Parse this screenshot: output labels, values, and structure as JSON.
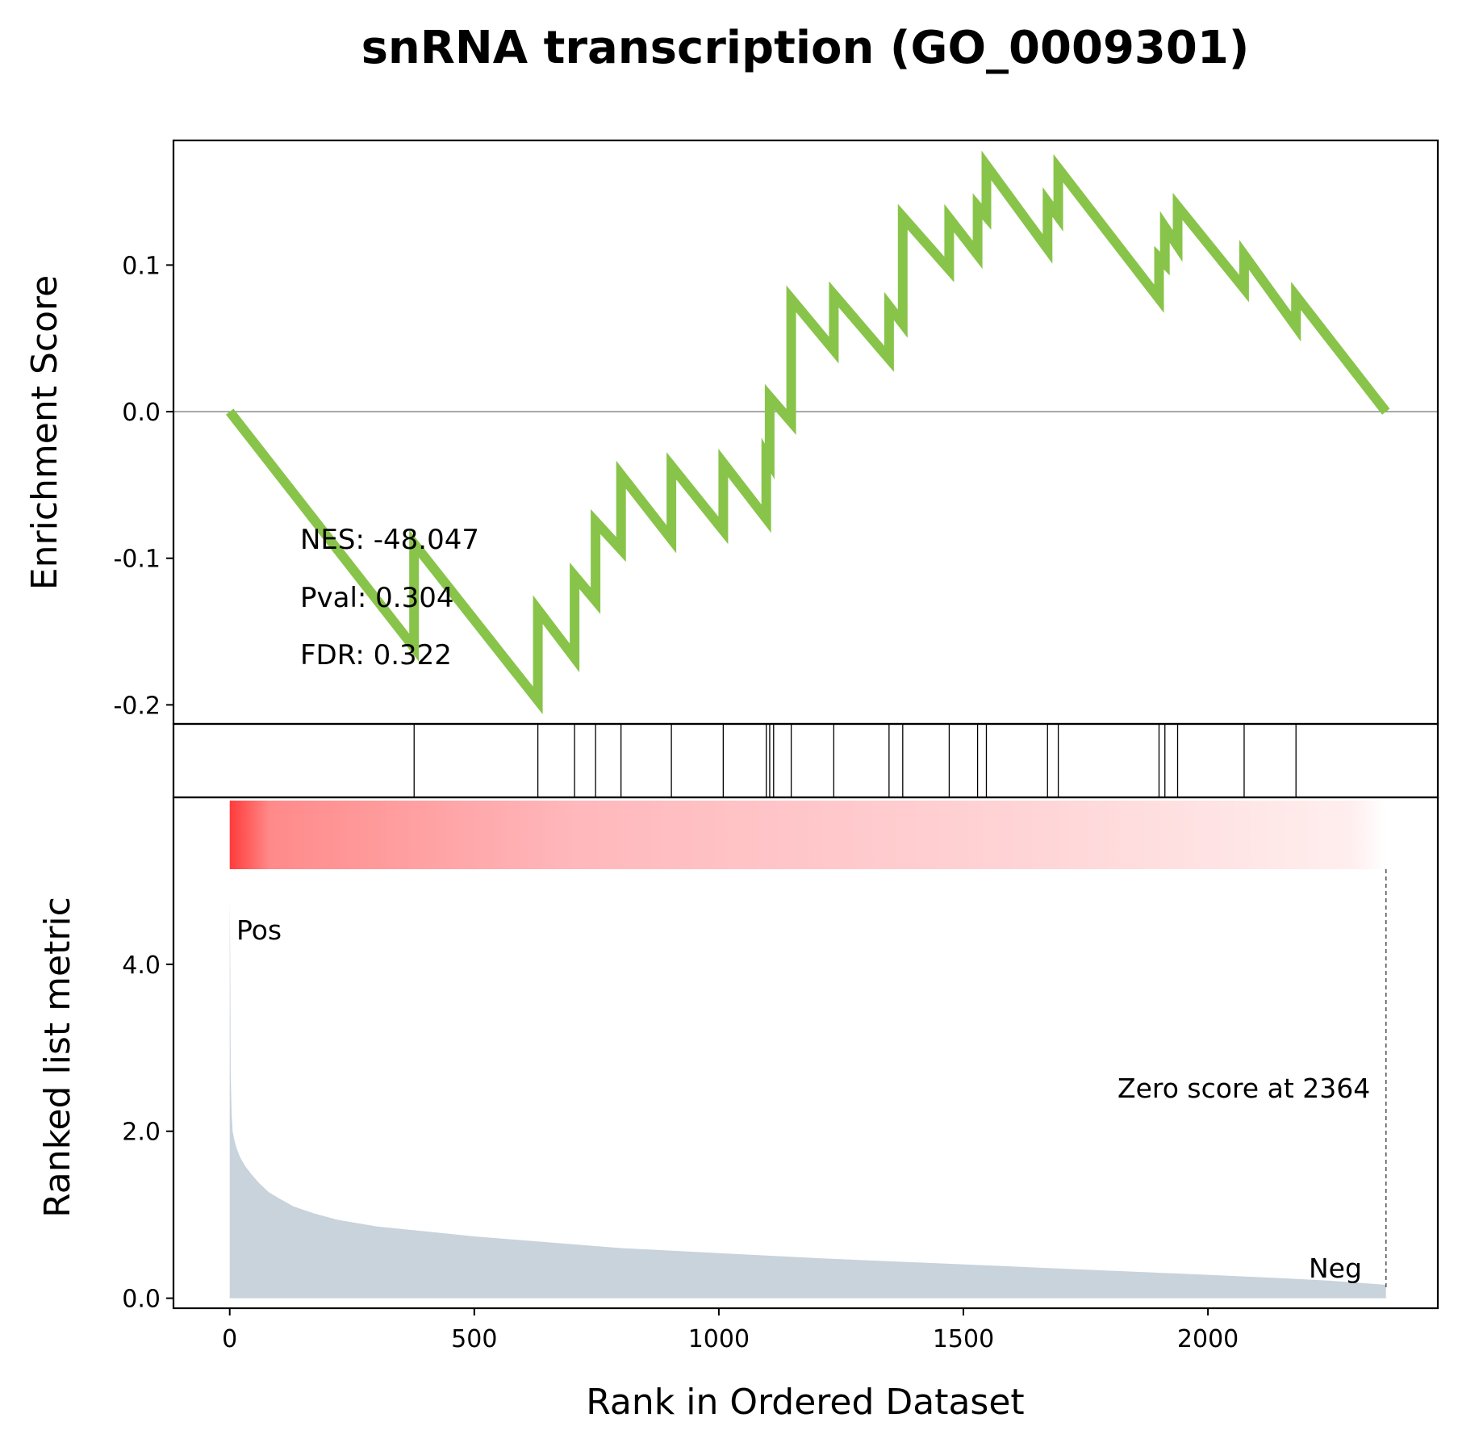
{
  "chart_data": {
    "type": "line",
    "title": "snRNA transcription (GO_0009301)",
    "xlabel": "Rank in Ordered Dataset",
    "ylabel_es": "Enrichment Score",
    "ylabel_metric": "Ranked list metric",
    "xlim": [
      -115,
      2470
    ],
    "x_ticks": [
      0,
      500,
      1000,
      1500,
      2000
    ],
    "es_ylim": [
      -0.213,
      0.185
    ],
    "es_ticks": [
      0.1,
      0.0,
      -0.1,
      -0.2
    ],
    "metric_ylim": [
      -0.12,
      6.0
    ],
    "metric_ticks": [
      4.0,
      2.0,
      0.0
    ],
    "stats": {
      "nes": "NES: -48.047",
      "pval": "Pval: 0.304",
      "fdr": "FDR: 0.322"
    },
    "series": [
      {
        "values": [
          [
            0,
            0.0
          ],
          [
            377,
            -0.161
          ],
          [
            377,
            -0.09
          ],
          [
            630,
            -0.197
          ],
          [
            630,
            -0.135
          ],
          [
            705,
            -0.168
          ],
          [
            705,
            -0.112
          ],
          [
            748,
            -0.129
          ],
          [
            748,
            -0.075
          ],
          [
            800,
            -0.094
          ],
          [
            800,
            -0.043
          ],
          [
            903,
            -0.087
          ],
          [
            903,
            -0.037
          ],
          [
            1009,
            -0.081
          ],
          [
            1009,
            -0.035
          ],
          [
            1097,
            -0.073
          ],
          [
            1097,
            -0.03
          ],
          [
            1104,
            -0.034
          ],
          [
            1104,
            0.01
          ],
          [
            1148,
            -0.007
          ],
          [
            1148,
            0.077
          ],
          [
            1235,
            0.042
          ],
          [
            1235,
            0.08
          ],
          [
            1348,
            0.036
          ],
          [
            1348,
            0.072
          ],
          [
            1376,
            0.06
          ],
          [
            1376,
            0.133
          ],
          [
            1471,
            0.097
          ],
          [
            1471,
            0.132
          ],
          [
            1529,
            0.107
          ],
          [
            1529,
            0.14
          ],
          [
            1547,
            0.133
          ],
          [
            1547,
            0.168
          ],
          [
            1672,
            0.111
          ],
          [
            1672,
            0.143
          ],
          [
            1694,
            0.133
          ],
          [
            1694,
            0.166
          ],
          [
            1900,
            0.077
          ],
          [
            1900,
            0.105
          ],
          [
            1912,
            0.101
          ],
          [
            1912,
            0.126
          ],
          [
            1938,
            0.113
          ],
          [
            1938,
            0.14
          ],
          [
            2074,
            0.084
          ],
          [
            2074,
            0.107
          ],
          [
            2180,
            0.058
          ],
          [
            2180,
            0.079
          ],
          [
            2364,
            0.0
          ]
        ]
      }
    ],
    "hits": [
      377,
      630,
      705,
      748,
      800,
      903,
      1009,
      1097,
      1104,
      1112,
      1148,
      1235,
      1348,
      1376,
      1471,
      1529,
      1547,
      1672,
      1694,
      1900,
      1912,
      1938,
      2074,
      2180
    ],
    "metric": {
      "points": [
        [
          0,
          4.78
        ],
        [
          1,
          4.1
        ],
        [
          2,
          2.7
        ],
        [
          4,
          2.2
        ],
        [
          6,
          2.0
        ],
        [
          10,
          1.88
        ],
        [
          15,
          1.78
        ],
        [
          22,
          1.68
        ],
        [
          32,
          1.58
        ],
        [
          45,
          1.48
        ],
        [
          60,
          1.38
        ],
        [
          80,
          1.27
        ],
        [
          100,
          1.2
        ],
        [
          130,
          1.1
        ],
        [
          170,
          1.02
        ],
        [
          220,
          0.94
        ],
        [
          300,
          0.86
        ],
        [
          400,
          0.8
        ],
        [
          500,
          0.74
        ],
        [
          650,
          0.67
        ],
        [
          800,
          0.6
        ],
        [
          1000,
          0.54
        ],
        [
          1200,
          0.48
        ],
        [
          1400,
          0.43
        ],
        [
          1600,
          0.38
        ],
        [
          1800,
          0.33
        ],
        [
          2000,
          0.28
        ],
        [
          2150,
          0.24
        ],
        [
          2250,
          0.21
        ],
        [
          2320,
          0.18
        ],
        [
          2364,
          0.16
        ]
      ],
      "fill_color": "#c8d3dc"
    },
    "zero_score": {
      "x": 2364,
      "label": "Zero score at 2364"
    },
    "pos_label": "Pos",
    "neg_label": "Neg",
    "colors": {
      "es_line": "#88c44a",
      "pos": "#ff0000",
      "neg": "#0000ff",
      "gradient_start": "#ff3b3b",
      "gradient_end": "#ffffff"
    }
  }
}
